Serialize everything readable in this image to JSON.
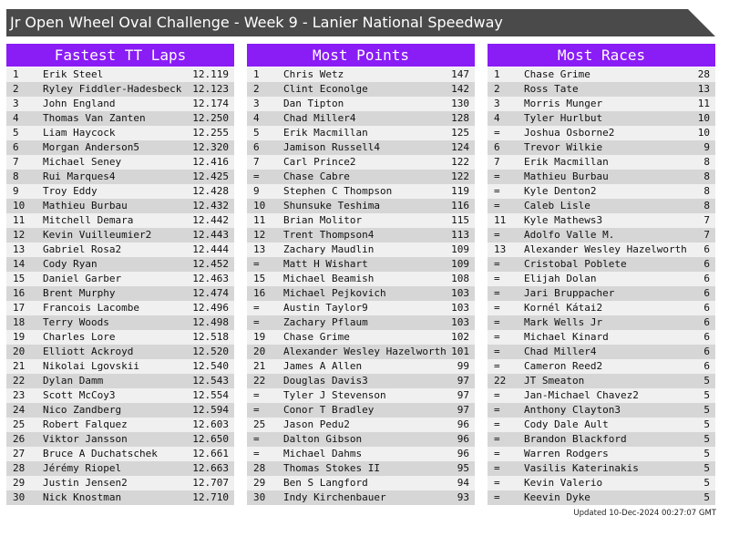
{
  "header": {
    "title": "Jr Open Wheel Oval Challenge - Week 9 - Lanier National Speedway"
  },
  "tables": [
    {
      "title": "Fastest TT Laps",
      "rows": [
        [
          "1",
          "Erik Steel",
          "12.119"
        ],
        [
          "2",
          "Ryley Fiddler-Hadesbeck",
          "12.123"
        ],
        [
          "3",
          "John England",
          "12.174"
        ],
        [
          "4",
          "Thomas Van Zanten",
          "12.250"
        ],
        [
          "5",
          "Liam Haycock",
          "12.255"
        ],
        [
          "6",
          "Morgan Anderson5",
          "12.320"
        ],
        [
          "7",
          "Michael Seney",
          "12.416"
        ],
        [
          "8",
          "Rui Marques4",
          "12.425"
        ],
        [
          "9",
          "Troy Eddy",
          "12.428"
        ],
        [
          "10",
          "Mathieu Burbau",
          "12.432"
        ],
        [
          "11",
          "Mitchell Demara",
          "12.442"
        ],
        [
          "12",
          "Kevin Vuilleumier2",
          "12.443"
        ],
        [
          "13",
          "Gabriel Rosa2",
          "12.444"
        ],
        [
          "14",
          "Cody Ryan",
          "12.452"
        ],
        [
          "15",
          "Daniel Garber",
          "12.463"
        ],
        [
          "16",
          "Brent Murphy",
          "12.474"
        ],
        [
          "17",
          "Francois Lacombe",
          "12.496"
        ],
        [
          "18",
          "Terry Woods",
          "12.498"
        ],
        [
          "19",
          "Charles Lore",
          "12.518"
        ],
        [
          "20",
          "Elliott Ackroyd",
          "12.520"
        ],
        [
          "21",
          "Nikolai Lgovskii",
          "12.540"
        ],
        [
          "22",
          "Dylan Damm",
          "12.543"
        ],
        [
          "23",
          "Scott McCoy3",
          "12.554"
        ],
        [
          "24",
          "Nico Zandberg",
          "12.594"
        ],
        [
          "25",
          "Robert Falquez",
          "12.603"
        ],
        [
          "26",
          "Viktor Jansson",
          "12.650"
        ],
        [
          "27",
          "Bruce A Duchatschek",
          "12.661"
        ],
        [
          "28",
          "Jérémy Riopel",
          "12.663"
        ],
        [
          "29",
          "Justin Jensen2",
          "12.707"
        ],
        [
          "30",
          "Nick Knostman",
          "12.710"
        ]
      ]
    },
    {
      "title": "Most Points",
      "rows": [
        [
          "1",
          "Chris Wetz",
          "147"
        ],
        [
          "2",
          "Clint Econolge",
          "142"
        ],
        [
          "3",
          "Dan Tipton",
          "130"
        ],
        [
          "4",
          "Chad Miller4",
          "128"
        ],
        [
          "5",
          "Erik Macmillan",
          "125"
        ],
        [
          "6",
          "Jamison Russell4",
          "124"
        ],
        [
          "7",
          "Carl Prince2",
          "122"
        ],
        [
          "=",
          "Chase Cabre",
          "122"
        ],
        [
          "9",
          "Stephen C Thompson",
          "119"
        ],
        [
          "10",
          "Shunsuke Teshima",
          "116"
        ],
        [
          "11",
          "Brian Molitor",
          "115"
        ],
        [
          "12",
          "Trent Thompson4",
          "113"
        ],
        [
          "13",
          "Zachary Maudlin",
          "109"
        ],
        [
          "=",
          "Matt H Wishart",
          "109"
        ],
        [
          "15",
          "Michael Beamish",
          "108"
        ],
        [
          "16",
          "Michael Pejkovich",
          "103"
        ],
        [
          "=",
          "Austin Taylor9",
          "103"
        ],
        [
          "=",
          "Zachary Pflaum",
          "103"
        ],
        [
          "19",
          "Chase Grime",
          "102"
        ],
        [
          "20",
          "Alexander Wesley Hazelworth",
          "101"
        ],
        [
          "21",
          "James A Allen",
          "99"
        ],
        [
          "22",
          "Douglas Davis3",
          "97"
        ],
        [
          "=",
          "Tyler J Stevenson",
          "97"
        ],
        [
          "=",
          "Conor T Bradley",
          "97"
        ],
        [
          "25",
          "Jason Pedu2",
          "96"
        ],
        [
          "=",
          "Dalton Gibson",
          "96"
        ],
        [
          "=",
          "Michael Dahms",
          "96"
        ],
        [
          "28",
          "Thomas Stokes II",
          "95"
        ],
        [
          "29",
          "Ben S Langford",
          "94"
        ],
        [
          "30",
          "Indy Kirchenbauer",
          "93"
        ]
      ]
    },
    {
      "title": "Most Races",
      "rows": [
        [
          "1",
          "Chase Grime",
          "28"
        ],
        [
          "2",
          "Ross Tate",
          "13"
        ],
        [
          "3",
          "Morris Munger",
          "11"
        ],
        [
          "4",
          "Tyler Hurlbut",
          "10"
        ],
        [
          "=",
          "Joshua Osborne2",
          "10"
        ],
        [
          "6",
          "Trevor Wilkie",
          "9"
        ],
        [
          "7",
          "Erik Macmillan",
          "8"
        ],
        [
          "=",
          "Mathieu Burbau",
          "8"
        ],
        [
          "=",
          "Kyle Denton2",
          "8"
        ],
        [
          "=",
          "Caleb Lisle",
          "8"
        ],
        [
          "11",
          "Kyle Mathews3",
          "7"
        ],
        [
          "=",
          "Adolfo Valle M.",
          "7"
        ],
        [
          "13",
          "Alexander Wesley Hazelworth",
          "6"
        ],
        [
          "=",
          "Cristobal Poblete",
          "6"
        ],
        [
          "=",
          "Elijah Dolan",
          "6"
        ],
        [
          "=",
          "Jari Bruppacher",
          "6"
        ],
        [
          "=",
          "Kornél Kátai2",
          "6"
        ],
        [
          "=",
          "Mark Wells Jr",
          "6"
        ],
        [
          "=",
          "Michael Kinard",
          "6"
        ],
        [
          "=",
          "Chad Miller4",
          "6"
        ],
        [
          "=",
          "Cameron Reed2",
          "6"
        ],
        [
          "22",
          "JT Smeaton",
          "5"
        ],
        [
          "=",
          "Jan-Michael Chavez2",
          "5"
        ],
        [
          "=",
          "Anthony Clayton3",
          "5"
        ],
        [
          "=",
          "Cody Dale Ault",
          "5"
        ],
        [
          "=",
          "Brandon Blackford",
          "5"
        ],
        [
          "=",
          "Warren Rodgers",
          "5"
        ],
        [
          "=",
          "Vasilis Katerinakis",
          "5"
        ],
        [
          "=",
          "Kevin Valerio",
          "5"
        ],
        [
          "=",
          "Keevin Dyke",
          "5"
        ]
      ]
    }
  ],
  "footer": {
    "updated": "Updated 10-Dec-2024 00:27:07 GMT"
  }
}
